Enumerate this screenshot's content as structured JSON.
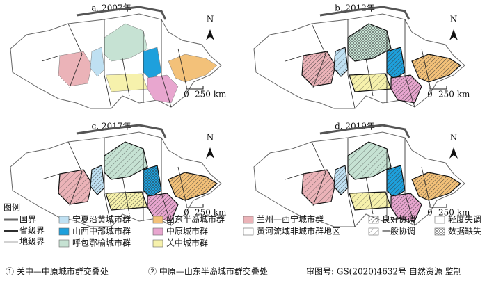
{
  "panels": [
    {
      "title": "a. 2007年"
    },
    {
      "title": "b. 2012年"
    },
    {
      "title": "c. 2017年"
    },
    {
      "title": "d. 2019年"
    }
  ],
  "north_label": "N",
  "scale_zero": "0",
  "scale_label": "250 km",
  "legend": {
    "title": "图例",
    "boundaries": [
      {
        "label": "国界"
      },
      {
        "label": "省级界"
      },
      {
        "label": "地级界"
      }
    ],
    "regions": [
      {
        "label": "宁夏沿黄城市群",
        "color": "#bfe0f2"
      },
      {
        "label": "山西中部城市群",
        "color": "#1ea0dc"
      },
      {
        "label": "呼包鄂榆城市群",
        "color": "#c6e2d3"
      },
      {
        "label": "山东半岛城市群",
        "color": "#f3c179"
      },
      {
        "label": "中原城市群",
        "color": "#e8a6cf"
      },
      {
        "label": "关中城市群",
        "color": "#f6f1ac"
      },
      {
        "label": "兰州—西宁城市群",
        "color": "#ebb3b8"
      },
      {
        "label": "黄河流域非城市群地区",
        "color": "#ffffff"
      }
    ],
    "coordination": [
      {
        "label": "良好协调"
      },
      {
        "label": "一般协调"
      },
      {
        "label": "轻度失调"
      },
      {
        "label": "数据缺失"
      }
    ]
  },
  "notes": [
    "① 关中—中原城市群交叠处",
    "② 中原—山东半岛城市群交叠处",
    "审图号: GS(2020)4632号 自然资源  监制"
  ]
}
